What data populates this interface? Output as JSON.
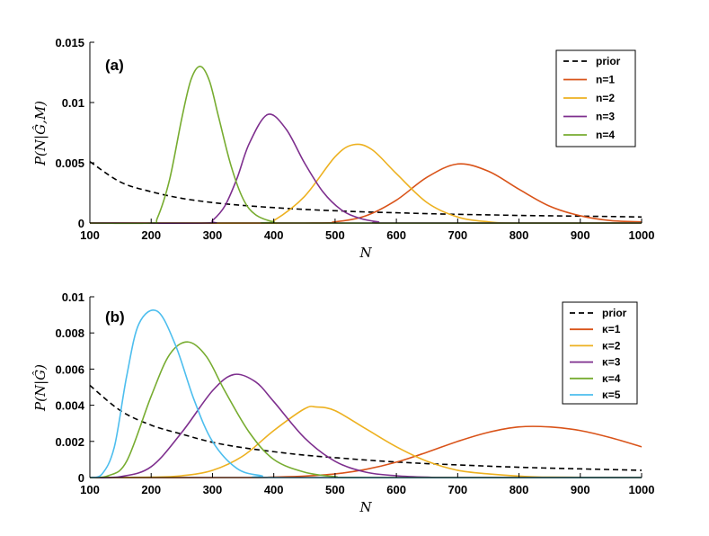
{
  "chart_data": [
    {
      "type": "line",
      "panel_tag": "(a)",
      "xlabel": "N",
      "ylabel": "P(N|Ĝ,M)",
      "xlim": [
        100,
        1000
      ],
      "ylim": [
        0,
        0.015
      ],
      "xticks": [
        "100",
        "200",
        "300",
        "400",
        "500",
        "600",
        "700",
        "800",
        "900",
        "1000"
      ],
      "yticks": [
        "0",
        "0.005",
        "0.01",
        "0.015"
      ],
      "legend_position": "top-right",
      "series": [
        {
          "name": "prior",
          "color": "#000000",
          "dash": true,
          "x": [
            100,
            150,
            200,
            250,
            300,
            350,
            400,
            450,
            500,
            550,
            600,
            650,
            700,
            750,
            800,
            850,
            900,
            950,
            1000
          ],
          "y": [
            0.0051,
            0.0034,
            0.0026,
            0.00205,
            0.0017,
            0.00146,
            0.00128,
            0.00113,
            0.00102,
            0.00092,
            0.00085,
            0.00078,
            0.00072,
            0.00068,
            0.00063,
            0.0006,
            0.00057,
            0.00054,
            0.0005
          ]
        },
        {
          "name": "n=1",
          "color": "#D95319",
          "x": [
            100,
            450,
            500,
            550,
            600,
            650,
            700,
            750,
            800,
            850,
            900,
            950,
            1000
          ],
          "y": [
            0,
            0,
            0.0001,
            0.0006,
            0.0019,
            0.0038,
            0.0049,
            0.0043,
            0.0028,
            0.0014,
            0.0006,
            0.0002,
            0.0001
          ]
        },
        {
          "name": "n=2",
          "color": "#EDB120",
          "x": [
            100,
            380,
            400,
            450,
            500,
            530,
            560,
            600,
            650,
            700,
            750,
            800,
            1000
          ],
          "y": [
            0,
            0,
            0.0002,
            0.0022,
            0.0055,
            0.0065,
            0.0061,
            0.0041,
            0.0017,
            0.0005,
            0.0001,
            0,
            0
          ]
        },
        {
          "name": "n=3",
          "color": "#7E2F8E",
          "x": [
            100,
            290,
            300,
            320,
            340,
            360,
            390,
            420,
            450,
            480,
            510,
            540,
            570,
            600,
            1000
          ],
          "y": [
            0,
            0,
            0.0002,
            0.0014,
            0.0037,
            0.0066,
            0.009,
            0.0078,
            0.005,
            0.0026,
            0.0011,
            0.0004,
            0.0001,
            0,
            0
          ]
        },
        {
          "name": "n=4",
          "color": "#77AC30",
          "x": [
            100,
            200,
            210,
            230,
            250,
            265,
            280,
            295,
            310,
            330,
            350,
            370,
            400,
            430,
            1000
          ],
          "y": [
            0,
            0,
            0.0004,
            0.0036,
            0.0087,
            0.0119,
            0.013,
            0.0118,
            0.0088,
            0.0048,
            0.002,
            0.0007,
            0.0001,
            0,
            0
          ]
        }
      ]
    },
    {
      "type": "line",
      "panel_tag": "(b)",
      "xlabel": "N",
      "ylabel": "P(N|Ĝ)",
      "xlim": [
        100,
        1000
      ],
      "ylim": [
        0,
        0.01
      ],
      "xticks": [
        "100",
        "200",
        "300",
        "400",
        "500",
        "600",
        "700",
        "800",
        "900",
        "1000"
      ],
      "yticks": [
        "0",
        "0.002",
        "0.004",
        "0.006",
        "0.008",
        "0.01"
      ],
      "legend_position": "top-right",
      "series": [
        {
          "name": "prior",
          "color": "#000000",
          "dash": true,
          "x": [
            100,
            150,
            200,
            250,
            300,
            350,
            400,
            450,
            500,
            550,
            600,
            650,
            700,
            750,
            800,
            850,
            900,
            950,
            1000
          ],
          "y": [
            0.0051,
            0.0037,
            0.0029,
            0.0024,
            0.00195,
            0.00165,
            0.00143,
            0.00124,
            0.0011,
            0.00097,
            0.00086,
            0.00077,
            0.0007,
            0.00063,
            0.00057,
            0.00052,
            0.00048,
            0.00044,
            0.0004
          ]
        },
        {
          "name": "κ=1",
          "color": "#D95319",
          "x": [
            100,
            350,
            400,
            450,
            500,
            550,
            600,
            650,
            700,
            750,
            800,
            850,
            900,
            950,
            1000
          ],
          "y": [
            0,
            0,
            3e-05,
            8e-05,
            0.0002,
            0.00045,
            0.00085,
            0.0014,
            0.002,
            0.0025,
            0.0028,
            0.0028,
            0.0026,
            0.0022,
            0.0017
          ]
        },
        {
          "name": "κ=2",
          "color": "#EDB120",
          "x": [
            100,
            200,
            250,
            300,
            350,
            400,
            450,
            470,
            500,
            550,
            600,
            650,
            700,
            750,
            800,
            850,
            1000
          ],
          "y": [
            0,
            2e-05,
            0.0001,
            0.0004,
            0.0012,
            0.0026,
            0.0038,
            0.0039,
            0.0037,
            0.0027,
            0.0017,
            0.0009,
            0.0004,
            0.0002,
            8e-05,
            2e-05,
            0
          ]
        },
        {
          "name": "κ=3",
          "color": "#7E2F8E",
          "x": [
            100,
            150,
            200,
            250,
            300,
            335,
            370,
            400,
            450,
            500,
            550,
            600,
            650,
            700,
            1000
          ],
          "y": [
            0,
            5e-05,
            0.0006,
            0.0025,
            0.0048,
            0.0057,
            0.0053,
            0.0042,
            0.0022,
            0.0009,
            0.0003,
            0.0001,
            2e-05,
            0,
            0
          ]
        },
        {
          "name": "κ=4",
          "color": "#77AC30",
          "x": [
            100,
            130,
            160,
            200,
            230,
            260,
            290,
            320,
            360,
            400,
            450,
            500,
            550,
            1000
          ],
          "y": [
            0,
            0.0001,
            0.0009,
            0.0045,
            0.0068,
            0.0075,
            0.0067,
            0.0048,
            0.0025,
            0.001,
            0.0003,
            5e-05,
            0,
            0
          ]
        },
        {
          "name": "κ=5",
          "color": "#4DBEEE",
          "x": [
            100,
            120,
            140,
            160,
            180,
            210,
            240,
            270,
            300,
            340,
            380,
            420,
            1000
          ],
          "y": [
            0,
            0.0002,
            0.0017,
            0.0056,
            0.0085,
            0.0092,
            0.0073,
            0.0043,
            0.002,
            0.0005,
            0.0001,
            0,
            0
          ]
        }
      ]
    }
  ]
}
